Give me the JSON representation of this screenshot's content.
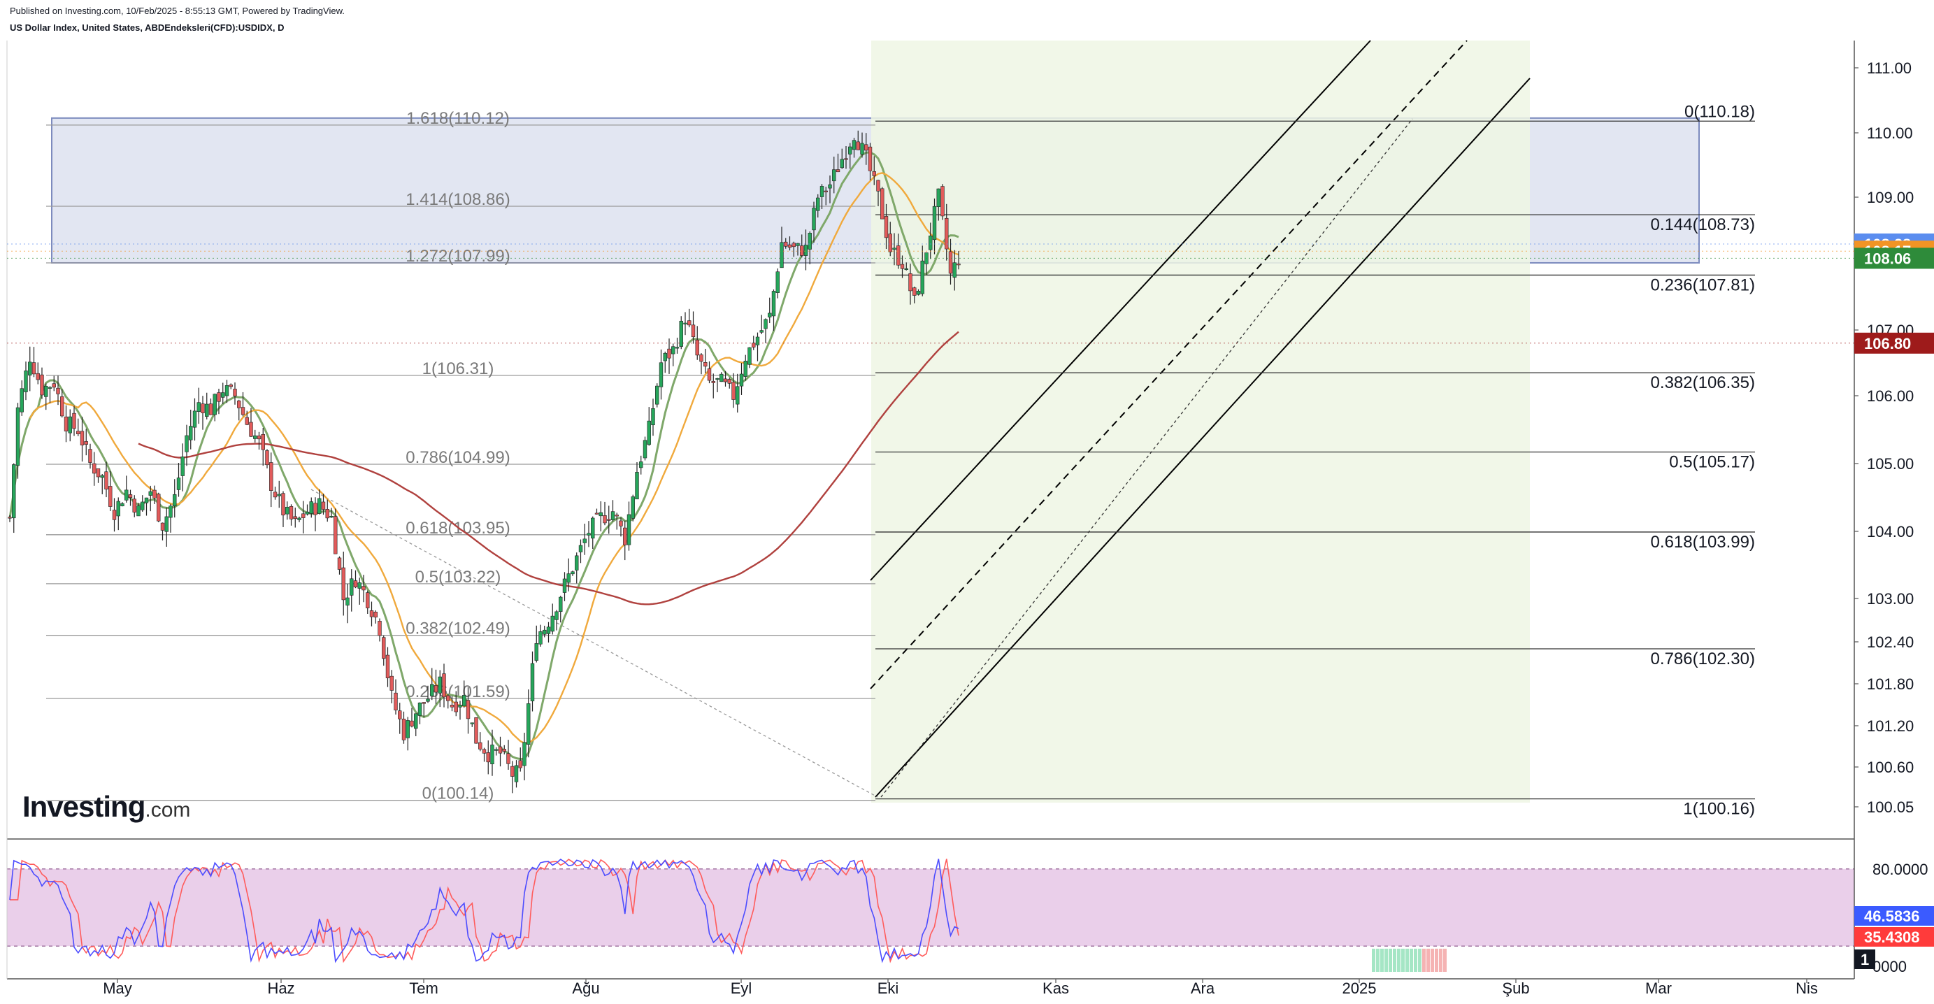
{
  "header": {
    "published": "Published on Investing.com, 10/Feb/2025 - 8:55:13 GMT, Powered by TradingView.",
    "instrument": "US Dollar Index, United States, ABDEndeksleri(CFD):USDIDX, D"
  },
  "logo": {
    "brand": "Investing",
    "suffix": ".com"
  },
  "colors": {
    "up": "#26a65b",
    "down": "#e25b5b",
    "ma_short": "#7fa86a",
    "ma_mid": "#f0a93c",
    "ma_long": "#b0413e",
    "zone_fill": "#dfe4f1",
    "channel_fill": "#eef6e4",
    "stoch_band": "#e6c7e6",
    "stoch_k": "#4c4cff",
    "stoch_d": "#ff5c5c"
  },
  "chart_data": [
    {
      "type": "candlestick",
      "x_labels": [
        "May",
        "Haz",
        "Tem",
        "Ağu",
        "Eyl",
        "Eki",
        "Kas",
        "Ara",
        "2025",
        "Şub",
        "Mar",
        "Nis"
      ],
      "y_ticks": [
        "111.00",
        "110.00",
        "109.00",
        "108.00",
        "107.00",
        "106.00",
        "105.00",
        "104.00",
        "103.00",
        "102.40",
        "101.80",
        "101.20",
        "100.60",
        "100.05"
      ],
      "ylim": [
        99.9,
        111.4
      ],
      "grid": false,
      "close_path": [
        [
          0,
          104.2
        ],
        [
          2,
          105.8
        ],
        [
          5,
          106.6
        ],
        [
          8,
          106.1
        ],
        [
          11,
          106.2
        ],
        [
          14,
          105.6
        ],
        [
          17,
          105.5
        ],
        [
          20,
          105.0
        ],
        [
          23,
          104.8
        ],
        [
          26,
          104.3
        ],
        [
          29,
          104.6
        ],
        [
          32,
          104.3
        ],
        [
          35,
          104.6
        ],
        [
          38,
          104.1
        ],
        [
          41,
          104.5
        ],
        [
          44,
          105.4
        ],
        [
          47,
          105.9
        ],
        [
          50,
          105.8
        ],
        [
          53,
          106.1
        ],
        [
          56,
          106.0
        ],
        [
          59,
          105.6
        ],
        [
          62,
          105.3
        ],
        [
          65,
          104.7
        ],
        [
          68,
          104.3
        ],
        [
          71,
          104.1
        ],
        [
          74,
          104.3
        ],
        [
          77,
          104.4
        ],
        [
          80,
          104.2
        ],
        [
          83,
          103.0
        ],
        [
          86,
          103.3
        ],
        [
          89,
          103.0
        ],
        [
          92,
          102.6
        ],
        [
          95,
          101.6
        ],
        [
          98,
          101.1
        ],
        [
          101,
          101.4
        ],
        [
          104,
          101.6
        ],
        [
          107,
          101.8
        ],
        [
          110,
          101.5
        ],
        [
          113,
          101.6
        ],
        [
          116,
          101.0
        ],
        [
          119,
          100.8
        ],
        [
          122,
          100.8
        ],
        [
          125,
          100.5
        ],
        [
          127,
          100.5
        ],
        [
          129,
          101.5
        ],
        [
          131,
          102.5
        ],
        [
          133,
          102.6
        ],
        [
          135,
          102.8
        ],
        [
          138,
          103.2
        ],
        [
          141,
          103.6
        ],
        [
          144,
          104.0
        ],
        [
          147,
          104.2
        ],
        [
          150,
          104.3
        ],
        [
          153,
          103.9
        ],
        [
          156,
          104.9
        ],
        [
          159,
          105.5
        ],
        [
          162,
          106.5
        ],
        [
          165,
          106.7
        ],
        [
          168,
          107.2
        ],
        [
          171,
          106.6
        ],
        [
          174,
          106.2
        ],
        [
          177,
          106.2
        ],
        [
          180,
          106.0
        ],
        [
          183,
          106.6
        ],
        [
          186,
          106.9
        ],
        [
          189,
          107.2
        ],
        [
          192,
          108.3
        ],
        [
          195,
          108.2
        ],
        [
          198,
          108.2
        ],
        [
          201,
          109.0
        ],
        [
          204,
          109.2
        ],
        [
          207,
          109.6
        ],
        [
          210,
          110.0
        ],
        [
          213,
          109.6
        ],
        [
          216,
          109.0
        ],
        [
          219,
          108.2
        ],
        [
          222,
          108.0
        ],
        [
          225,
          107.4
        ],
        [
          228,
          108.2
        ],
        [
          231,
          109.0
        ],
        [
          234,
          107.8
        ],
        [
          236,
          108.06
        ]
      ],
      "fib_retracement_right": [
        {
          "label": "0(110.18)",
          "value": 110.18
        },
        {
          "label": "0.144(108.73)",
          "value": 108.73
        },
        {
          "label": "0.236(107.81)",
          "value": 107.81
        },
        {
          "label": "0.382(106.35)",
          "value": 106.35
        },
        {
          "label": "0.5(105.17)",
          "value": 105.17
        },
        {
          "label": "0.618(103.99)",
          "value": 103.99
        },
        {
          "label": "0.786(102.30)",
          "value": 102.3
        },
        {
          "label": "1(100.16)",
          "value": 100.16
        }
      ],
      "fib_extension_left": [
        {
          "label": "1.618(110.12)",
          "value": 110.12
        },
        {
          "label": "1.414(108.86)",
          "value": 108.86
        },
        {
          "label": "1.272(107.99)",
          "value": 107.99
        },
        {
          "label": "1(106.31)",
          "value": 106.31
        },
        {
          "label": "0.786(104.99)",
          "value": 104.99
        },
        {
          "label": "0.618(103.95)",
          "value": 103.95
        },
        {
          "label": "0.5(103.22)",
          "value": 103.22
        },
        {
          "label": "0.382(102.49)",
          "value": 102.49
        },
        {
          "label": "0.236(101.59)",
          "value": 101.59
        },
        {
          "label": "0(100.14)",
          "value": 100.14
        }
      ],
      "price_tags": [
        {
          "label": "108.28",
          "value": 108.28,
          "color": "#5b8def"
        },
        {
          "label": "108.17",
          "value": 108.17,
          "color": "#f29425"
        },
        {
          "label": "108.06",
          "value": 108.06,
          "color": "#2e8b3a"
        },
        {
          "label": "106.80",
          "value": 106.8,
          "color": "#9e1b1b"
        }
      ]
    },
    {
      "type": "line",
      "name": "Stochastic",
      "y_ticks": [
        "80.0000",
        "0000"
      ],
      "ylim": [
        0,
        100
      ],
      "tags": [
        {
          "label": "46.5836",
          "color": "#3b5bff"
        },
        {
          "label": "35.4308",
          "color": "#ff3b3b"
        },
        {
          "label": "1",
          "color": "#131722"
        }
      ]
    }
  ]
}
